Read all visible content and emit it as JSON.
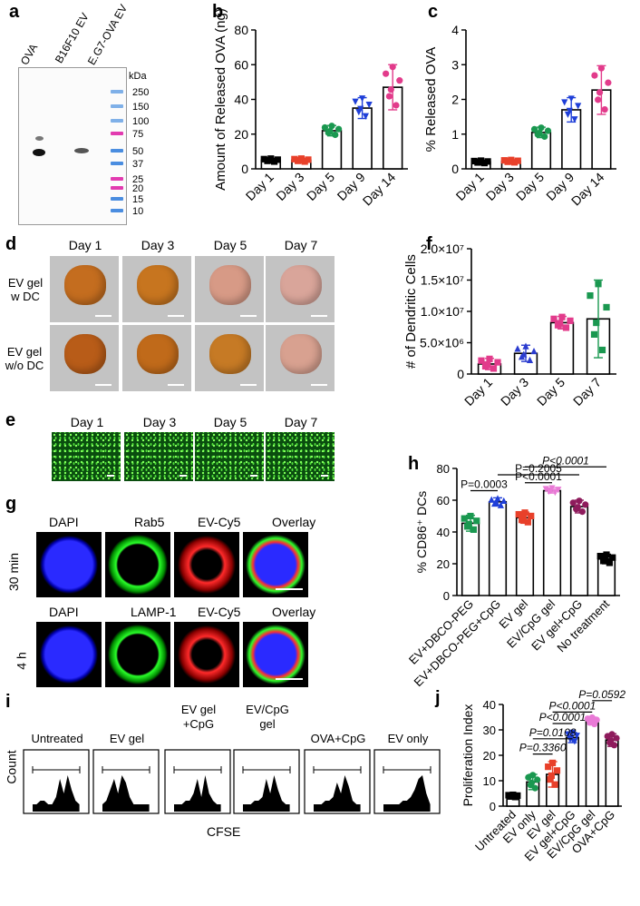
{
  "panels": {
    "a": "a",
    "b": "b",
    "c": "c",
    "d": "d",
    "e": "e",
    "f": "f",
    "g": "g",
    "h": "h",
    "i": "i",
    "j": "j"
  },
  "blot": {
    "lanes": [
      "OVA",
      "B16F10 EV",
      "E.G7-OVA EV"
    ],
    "unit": "kDa",
    "markers": [
      "250",
      "150",
      "100",
      "75",
      "50",
      "37",
      "25",
      "20",
      "15",
      "10"
    ]
  },
  "gel_photos": {
    "days": [
      "Day 1",
      "Day 3",
      "Day 5",
      "Day 7"
    ],
    "row1_label": [
      "EV gel",
      "w DC"
    ],
    "row2_label": [
      "EV gel",
      "w/o DC"
    ]
  },
  "fluor_strip": {
    "days": [
      "Day 1",
      "Day 3",
      "Day 5",
      "Day 7"
    ]
  },
  "confocal": {
    "row1": {
      "time": "30 min",
      "channels": [
        "DAPI",
        "Rab5",
        "EV-Cy5",
        "Overlay"
      ]
    },
    "row2": {
      "time": "4 h",
      "channels": [
        "DAPI",
        "LAMP-1",
        "EV-Cy5",
        "Overlay"
      ]
    }
  },
  "flow": {
    "titles": [
      [
        "Untreated"
      ],
      [
        "EV gel"
      ],
      [
        "EV gel",
        "+CpG"
      ],
      [
        "EV/CpG",
        "gel"
      ],
      [
        "OVA+CpG"
      ],
      [
        "EV only"
      ]
    ],
    "ylabel": "Count",
    "xlabel": "CFSE"
  },
  "chart_data": [
    {
      "id": "b",
      "type": "bar",
      "categories": [
        "Day 1",
        "Day 3",
        "Day 5",
        "Day 9",
        "Day 14"
      ],
      "values": [
        5,
        5,
        22,
        35,
        47
      ],
      "errors": [
        1,
        1,
        3,
        6,
        13
      ],
      "ylabel": "Amount of Released OVA (ng)",
      "ylim": [
        0,
        80
      ],
      "yticks": [
        "0",
        "20",
        "40",
        "60",
        "80"
      ],
      "colors": [
        "#000000",
        "#e8402a",
        "#1a9850",
        "#1f3fd8",
        "#e23b8b"
      ],
      "markers": [
        "square",
        "square",
        "circle",
        "triangle-down",
        "circle"
      ]
    },
    {
      "id": "c",
      "type": "bar",
      "categories": [
        "Day 1",
        "Day 3",
        "Day 5",
        "Day 9",
        "Day 14"
      ],
      "values": [
        0.2,
        0.22,
        1.05,
        1.7,
        2.27
      ],
      "errors": [
        0.04,
        0.04,
        0.15,
        0.35,
        0.7
      ],
      "ylabel": "% Released OVA",
      "ylim": [
        0,
        4
      ],
      "yticks": [
        "0",
        "1",
        "2",
        "3",
        "4"
      ],
      "colors": [
        "#000000",
        "#e8402a",
        "#1a9850",
        "#1f3fd8",
        "#e23b8b"
      ],
      "markers": [
        "square",
        "square",
        "circle",
        "triangle-down",
        "circle"
      ]
    },
    {
      "id": "f",
      "type": "bar",
      "categories": [
        "Day 1",
        "Day 3",
        "Day 5",
        "Day 7"
      ],
      "values": [
        1600000,
        3300000,
        8200000,
        8800000
      ],
      "errors": [
        900000,
        1300000,
        1000000,
        6200000
      ],
      "ylabel": "# of Dendritic Cells",
      "ylim": [
        0,
        20000000
      ],
      "yticks": [
        "0",
        "5.0×10⁶",
        "1.0×10⁷",
        "1.5×10⁷",
        "2.0×10⁷"
      ],
      "colors": [
        "#e23b8b",
        "#2b3ccf",
        "#e23b8b",
        "#1a9850"
      ],
      "markers": [
        "square",
        "triangle-up",
        "square",
        "square"
      ]
    },
    {
      "id": "h",
      "type": "bar",
      "categories": [
        "EV+DBCO-PEG",
        "EV+DBCO-PEG+CpG",
        "EV gel",
        "EV/CpG gel",
        "EV gel+CpG",
        "No treatment"
      ],
      "values": [
        45.5,
        59,
        49,
        66,
        56,
        23
      ],
      "errors": [
        5,
        2.5,
        3.5,
        1.5,
        4,
        3
      ],
      "ylabel": "% CD86⁺ DCs",
      "ylim": [
        0,
        80
      ],
      "yticks": [
        "0",
        "20",
        "40",
        "60",
        "80"
      ],
      "colors": [
        "#1a9850",
        "#1f3fd8",
        "#e8402a",
        "#e97ad6",
        "#8e1b5c",
        "#000000"
      ],
      "markers": [
        "square",
        "triangle-up",
        "square",
        "triangle-down",
        "circle",
        "square"
      ],
      "annotations": [
        {
          "text": "P=0.0003",
          "from": 0,
          "to": 1,
          "level": 66,
          "italic": false
        },
        {
          "text": "P<0.0001",
          "from": 2,
          "to": 3,
          "level": 71,
          "italic": false
        },
        {
          "text": "P=0.2005",
          "from": 1,
          "to": 4,
          "level": 76,
          "italic": false
        },
        {
          "text": "P<0.0001",
          "from": 2,
          "to": 5,
          "level": 81,
          "italic": true
        }
      ]
    },
    {
      "id": "j",
      "type": "bar",
      "categories": [
        "Untreated",
        "EV only",
        "EV gel",
        "EV gel+CpG",
        "EV/CpG gel",
        "OVA+CpG"
      ],
      "values": [
        4,
        9.5,
        12.5,
        27,
        33.5,
        26
      ],
      "errors": [
        0.5,
        3,
        5,
        2,
        1.5,
        2.5
      ],
      "ylabel": "Proliferation Index",
      "ylim": [
        0,
        40
      ],
      "yticks": [
        "0",
        "10",
        "20",
        "30",
        "40"
      ],
      "colors": [
        "#000000",
        "#1a9850",
        "#e8402a",
        "#1f3fd8",
        "#e97ad6",
        "#8e1b5c"
      ],
      "markers": [
        "square",
        "circle",
        "square",
        "triangle-down",
        "circle",
        "circle"
      ],
      "annotations": [
        {
          "text": "P=0.3360",
          "from": 1,
          "to": 2,
          "level": 20.5,
          "italic": true
        },
        {
          "text": "P=0.0108",
          "from": 1,
          "to": 3,
          "level": 26.5,
          "italic": true
        },
        {
          "text": "P<0.0001",
          "from": 2,
          "to": 3,
          "level": 32.5,
          "italic": true
        },
        {
          "text": "P<0.0001",
          "from": 2,
          "to": 4,
          "level": 37,
          "italic": true
        },
        {
          "text": "P=0.0592",
          "from": 4,
          "to": 5,
          "level": 41.5,
          "italic": true
        }
      ]
    }
  ]
}
